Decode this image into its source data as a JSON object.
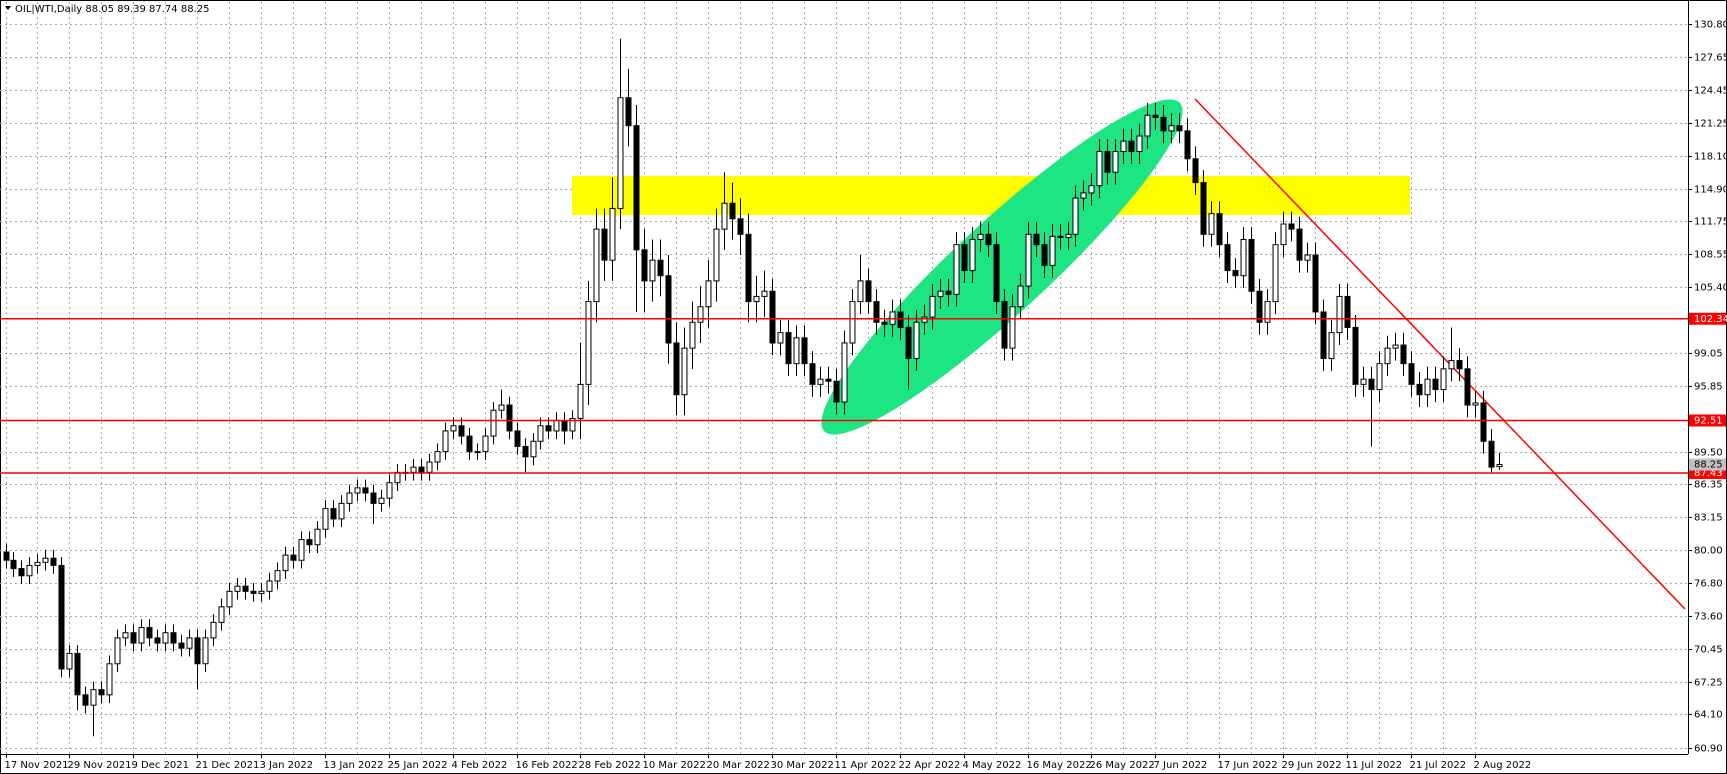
{
  "chart_data": {
    "type": "candlestick",
    "title": "OIL|WTI,Daily",
    "categories": [
      "17 Nov 2021",
      null,
      null,
      null,
      null,
      null,
      null,
      null,
      "29 Nov 2021",
      null,
      null,
      null,
      null,
      null,
      null,
      null,
      "9 Dec 2021",
      null,
      null,
      null,
      null,
      null,
      null,
      null,
      "21 Dec 2021",
      null,
      null,
      null,
      null,
      null,
      null,
      null,
      "3 Jan 2022",
      null,
      null,
      null,
      null,
      null,
      null,
      null,
      "13 Jan 2022",
      null,
      null,
      null,
      null,
      null,
      null,
      null,
      "25 Jan 2022",
      null,
      null,
      null,
      null,
      null,
      null,
      null,
      "4 Feb 2022",
      null,
      null,
      null,
      null,
      null,
      null,
      null,
      "16 Feb 2022",
      null,
      null,
      null,
      null,
      null,
      null,
      null,
      "28 Feb 2022",
      null,
      null,
      null,
      null,
      null,
      null,
      null,
      "10 Mar 2022",
      null,
      null,
      null,
      null,
      null,
      null,
      null,
      "20 Mar 2022",
      null,
      null,
      null,
      null,
      null,
      null,
      null,
      "30 Mar 2022",
      null,
      null,
      null,
      null,
      null,
      null,
      null,
      "11 Apr 2022",
      null,
      null,
      null,
      null,
      null,
      null,
      null,
      "22 Apr 2022",
      null,
      null,
      null,
      null,
      null,
      null,
      null,
      "4 May 2022",
      null,
      null,
      null,
      null,
      null,
      null,
      null,
      "16 May 2022",
      null,
      null,
      null,
      null,
      null,
      null,
      null,
      "26 May 2022",
      null,
      null,
      null,
      null,
      null,
      null,
      null,
      "7 Jun 2022",
      null,
      null,
      null,
      null,
      null,
      null,
      null,
      "17 Jun 2022",
      null,
      null,
      null,
      null,
      null,
      null,
      null,
      "29 Jun 2022",
      null,
      null,
      null,
      null,
      null,
      null,
      null,
      "11 Jul 2022",
      null,
      null,
      null,
      null,
      null,
      null,
      null,
      "21 Jul 2022",
      null,
      null,
      null,
      null,
      null,
      null,
      null,
      "2 Aug 2022",
      null,
      null,
      null
    ],
    "open": [
      79.8,
      79.0,
      78.2,
      77.5,
      78.5,
      78.8,
      79.2,
      78.5,
      68.5,
      70.0,
      66.0,
      65.0,
      66.5,
      66.0,
      69.0,
      71.5,
      72.0,
      71.0,
      72.5,
      71.5,
      71.0,
      72.0,
      71.0,
      70.5,
      71.5,
      69.0,
      71.5,
      73.0,
      74.5,
      76.0,
      76.5,
      76.0,
      75.8,
      76.0,
      77.0,
      78.0,
      79.5,
      79.0,
      81.0,
      80.5,
      82.0,
      84.0,
      83.0,
      84.5,
      85.5,
      86.0,
      85.5,
      84.5,
      85.0,
      86.5,
      87.5,
      87.5,
      88.0,
      87.5,
      88.5,
      89.5,
      91.5,
      92.0,
      91.0,
      89.5,
      89.5,
      91.0,
      93.5,
      94.0,
      91.5,
      90.0,
      89.0,
      90.5,
      92.0,
      91.5,
      92.5,
      91.5,
      92.7,
      96.0,
      104.0,
      111.0,
      108.0,
      113.0,
      123.7,
      121.0,
      109.0,
      106.0,
      108.0,
      106.5,
      100.0,
      95.0,
      99.5,
      102.0,
      103.5,
      106.0,
      111.0,
      113.5,
      112.0,
      110.5,
      104.0,
      104.5,
      105.0,
      100.0,
      101.0,
      98.0,
      100.5,
      98.0,
      96.0,
      96.5,
      96.3,
      94.3,
      100.0,
      104.0,
      106.0,
      104.0,
      102.0,
      101.8,
      103.0,
      101.5,
      98.5,
      102.0,
      102.5,
      104.5,
      105.0,
      104.7,
      109.5,
      107.0,
      110.0,
      110.5,
      109.5,
      104.0,
      99.5,
      103.5,
      105.5,
      110.5,
      109.5,
      107.5,
      110.3,
      110.2,
      110.5,
      114.0,
      114.5,
      115.2,
      118.5,
      116.5,
      118.5,
      119.5,
      118.5,
      120.0,
      122.0,
      121.8,
      120.5,
      121.0,
      120.5,
      117.8,
      115.5,
      110.5,
      112.5,
      109.5,
      107.0,
      106.5,
      110.0,
      105.0,
      102.0,
      104.0,
      109.5,
      111.5,
      111.0,
      108.0,
      108.5,
      103.0,
      98.5,
      101.0,
      104.5,
      101.5,
      96.0,
      96.5,
      95.5,
      98.0,
      99.5,
      99.8,
      98.0,
      96.0,
      95.0,
      96.5,
      95.5,
      97.5,
      98.3,
      97.5,
      94.0,
      94.2,
      90.5,
      88.05
    ],
    "high": [
      80.6,
      79.8,
      79.0,
      79.3,
      79.6,
      80.0,
      80.0,
      79.3,
      70.8,
      70.8,
      66.8,
      67.3,
      67.3,
      69.8,
      72.3,
      72.8,
      72.8,
      73.3,
      73.3,
      72.3,
      72.8,
      72.8,
      71.8,
      72.3,
      72.3,
      72.3,
      73.8,
      75.3,
      76.8,
      77.3,
      77.3,
      76.8,
      76.8,
      77.8,
      78.8,
      80.3,
      80.3,
      81.8,
      81.8,
      82.8,
      84.8,
      84.8,
      85.3,
      86.3,
      86.8,
      86.8,
      86.3,
      85.8,
      87.3,
      88.3,
      88.3,
      88.8,
      88.8,
      89.3,
      90.3,
      92.3,
      92.8,
      92.8,
      91.8,
      90.3,
      91.8,
      94.3,
      95.5,
      94.8,
      92.3,
      90.8,
      91.3,
      92.8,
      92.8,
      93.3,
      93.3,
      93.5,
      100,
      106,
      113,
      113,
      116,
      129.4,
      126.5,
      123,
      111,
      110,
      110,
      108.5,
      102,
      101.5,
      104,
      105.5,
      108,
      113,
      116.5,
      115.5,
      114,
      112.5,
      106.5,
      107,
      106.2,
      102.2,
      102.2,
      101.7,
      101.7,
      99.2,
      97.7,
      97.7,
      97.5,
      101.2,
      105.2,
      108.5,
      107.2,
      105.2,
      103.2,
      104.2,
      104.2,
      102.7,
      103.2,
      103.7,
      105.7,
      106.2,
      106.2,
      110.7,
      110.7,
      111.2,
      111.7,
      111.7,
      110.7,
      105.2,
      104.7,
      106.7,
      111.7,
      111.7,
      110.7,
      111.5,
      111.5,
      111.7,
      115.2,
      115.7,
      116.4,
      119.7,
      119.7,
      119.7,
      120.7,
      120.7,
      121.2,
      123.2,
      123.2,
      123.0,
      122.2,
      122.2,
      121.7,
      119.0,
      116.7,
      113.7,
      113.7,
      110.7,
      108.2,
      111.2,
      111.2,
      106.2,
      105.2,
      110.7,
      112.7,
      112.7,
      112.2,
      109.7,
      109.7,
      104.2,
      102.2,
      105.7,
      105.7,
      102.7,
      97.7,
      97.7,
      99.2,
      100.7,
      101.0,
      101.0,
      99.2,
      97.2,
      97.7,
      97.7,
      98.7,
      101.5,
      99.5,
      98.7,
      95.4,
      95.4,
      91.7,
      89.39
    ],
    "low": [
      78.2,
      77.4,
      76.7,
      76.7,
      77.7,
      78.0,
      77.7,
      67.7,
      67.7,
      64.5,
      64.2,
      62.0,
      65.2,
      65.2,
      68.2,
      70.7,
      70.2,
      70.2,
      70.7,
      70.2,
      70.2,
      70.2,
      69.7,
      69.7,
      66.5,
      68.2,
      70.7,
      72.2,
      73.7,
      75.2,
      75.2,
      75.0,
      75.0,
      75.2,
      76.2,
      77.2,
      78.2,
      78.2,
      79.7,
      79.7,
      81.2,
      82.2,
      82.2,
      83.7,
      84.7,
      84.7,
      82.5,
      83.7,
      84.2,
      85.7,
      86.7,
      86.7,
      86.7,
      86.7,
      87.7,
      88.7,
      90.7,
      90.2,
      88.7,
      88.7,
      88.7,
      90.2,
      92.7,
      90.7,
      89.2,
      87.5,
      88.2,
      89.7,
      90.7,
      90.7,
      90.2,
      90.7,
      90.7,
      94,
      102,
      106,
      106,
      111,
      119,
      103,
      103,
      104,
      104.5,
      98,
      93,
      93,
      97.5,
      100,
      101.5,
      104,
      109,
      110,
      108.5,
      102,
      102,
      102.5,
      98.8,
      98.8,
      96.8,
      96.8,
      96.8,
      94.8,
      94.8,
      95.1,
      93.1,
      93.1,
      98.8,
      102.8,
      102.8,
      100.8,
      100.6,
      100.6,
      100.3,
      95.5,
      97.3,
      100.8,
      101.3,
      103.3,
      103.5,
      103.5,
      105.8,
      105.8,
      108.8,
      108.3,
      102.8,
      98.3,
      98.3,
      102.3,
      104.3,
      108.3,
      106.3,
      106.3,
      109.0,
      109.0,
      109.3,
      112.8,
      113.3,
      114.0,
      115.3,
      115.3,
      117.3,
      117.3,
      117.3,
      118.8,
      120.6,
      119.3,
      119.3,
      119.3,
      116.6,
      114.3,
      109.3,
      109.3,
      108.3,
      105.8,
      105.3,
      105.3,
      103.8,
      100.8,
      100.8,
      102.8,
      108.3,
      109.8,
      106.8,
      106.8,
      101.8,
      97.3,
      97.3,
      99.8,
      100.3,
      94.8,
      94.8,
      90.0,
      94.3,
      96.8,
      98.3,
      96.8,
      94.8,
      93.8,
      93.8,
      94.3,
      94.3,
      96.3,
      96.3,
      92.8,
      92.8,
      89.3,
      87.5,
      87.74
    ],
    "close": [
      79.0,
      78.2,
      77.5,
      78.5,
      78.8,
      79.2,
      78.5,
      68.5,
      70.0,
      66.0,
      65.0,
      66.5,
      66.0,
      69.0,
      71.5,
      72.0,
      71.0,
      72.5,
      71.5,
      71.0,
      72.0,
      71.0,
      70.5,
      71.5,
      69.0,
      71.5,
      73.0,
      74.5,
      76.0,
      76.5,
      76.0,
      75.8,
      76.0,
      77.0,
      78.0,
      79.5,
      79.0,
      81.0,
      80.5,
      82.0,
      84.0,
      83.0,
      84.5,
      85.5,
      86.0,
      85.5,
      84.5,
      85.0,
      86.5,
      87.5,
      87.5,
      88.0,
      87.5,
      88.5,
      89.5,
      91.5,
      92.0,
      91.0,
      89.5,
      89.5,
      91.0,
      93.5,
      94.0,
      91.5,
      90.0,
      89.0,
      90.5,
      92.0,
      91.5,
      92.5,
      91.5,
      92.7,
      96.0,
      104.0,
      111.0,
      108.0,
      113.0,
      123.7,
      121.0,
      109.0,
      106.0,
      108.0,
      106.5,
      100.0,
      95.0,
      99.5,
      102.0,
      103.5,
      106.0,
      111.0,
      113.5,
      112.0,
      110.5,
      104.0,
      104.5,
      105.0,
      100.0,
      101.0,
      98.0,
      100.5,
      98.0,
      96.0,
      96.5,
      96.3,
      94.3,
      100.0,
      104.0,
      106.0,
      104.0,
      102.0,
      101.8,
      103.0,
      101.5,
      98.5,
      102.0,
      102.5,
      104.5,
      105.0,
      104.7,
      109.5,
      107.0,
      110.0,
      110.5,
      109.5,
      104.0,
      99.5,
      103.5,
      105.5,
      110.5,
      109.5,
      107.5,
      110.3,
      110.2,
      110.5,
      114.0,
      114.5,
      115.2,
      118.5,
      116.5,
      118.5,
      119.5,
      118.5,
      120.0,
      122.0,
      121.8,
      120.5,
      121.0,
      120.5,
      117.8,
      115.5,
      110.5,
      112.5,
      109.5,
      107.0,
      106.5,
      110.0,
      105.0,
      102.0,
      104.0,
      109.5,
      111.5,
      111.0,
      108.0,
      108.5,
      103.0,
      98.5,
      101.0,
      104.5,
      101.5,
      96.0,
      96.5,
      95.5,
      98.0,
      99.5,
      99.8,
      98.0,
      96.0,
      95.0,
      96.5,
      95.5,
      97.5,
      98.3,
      97.5,
      94.0,
      94.2,
      90.5,
      88.0,
      88.25
    ],
    "up_color": "#ffffff",
    "down_color": "#000000",
    "hlines": [
      102.34,
      92.51,
      87.43
    ],
    "hline_color": "#ff0000",
    "ylim": [
      60.28,
      132.95
    ],
    "yticks": [
      {
        "value": 130.8,
        "label": "130.80"
      },
      127.65,
      124.45,
      121.25,
      {
        "value": 118.1,
        "label": "118.10"
      },
      {
        "value": 114.9,
        "label": "114.90"
      },
      111.75,
      108.55,
      {
        "value": 105.4,
        "label": "105.40"
      },
      99.05,
      95.85,
      {
        "value": 89.5,
        "label": "89.50"
      },
      86.35,
      83.15,
      {
        "value": 80,
        "label": "80.00"
      },
      {
        "value": 76.8,
        "label": "76.80"
      },
      {
        "value": 73.6,
        "label": "73.60"
      },
      70.45,
      67.25,
      {
        "value": 64.1,
        "label": "64.10"
      },
      {
        "value": 60.9,
        "label": "60.90"
      }
    ],
    "grid": true
  }
}
